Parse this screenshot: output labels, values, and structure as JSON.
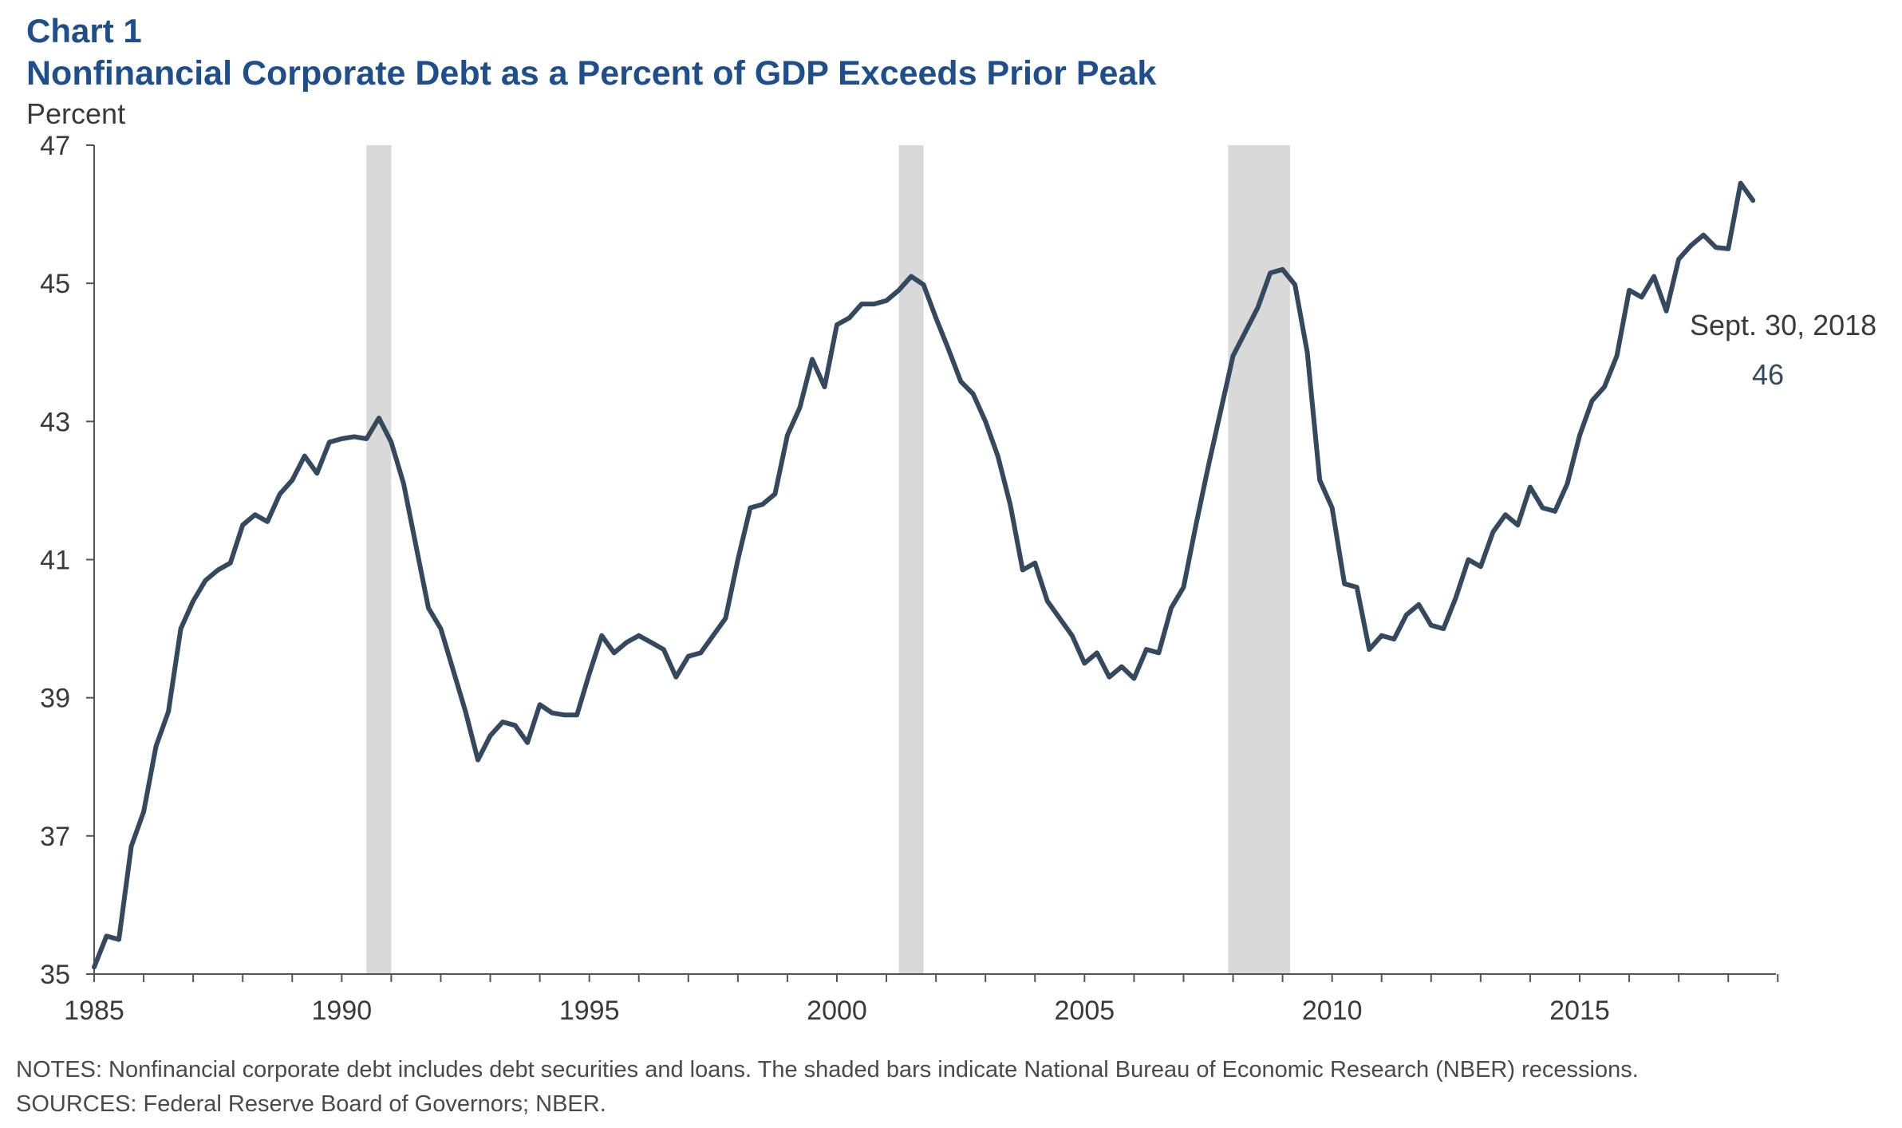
{
  "header": {
    "chart_number": "Chart 1",
    "title": "Nonfinancial Corporate Debt as a Percent of GDP Exceeds Prior Peak",
    "unit_label": "Percent"
  },
  "annotation": {
    "date_label": "Sept. 30, 2018",
    "value_label": "46"
  },
  "footnotes": {
    "notes": "NOTES: Nonfinancial corporate debt includes debt securities and loans. The shaded bars indicate National Bureau of Economic Research (NBER) recessions.",
    "sources": "SOURCES: Federal Reserve Board of Governors; NBER."
  },
  "colors": {
    "title": "#1f4e8c",
    "line": "#34495e",
    "recession": "#d9d9d9"
  },
  "chart_data": {
    "type": "line",
    "title": "Nonfinancial Corporate Debt as a Percent of GDP Exceeds Prior Peak",
    "xlabel": "",
    "ylabel": "Percent",
    "xlim": [
      1985,
      2019
    ],
    "ylim": [
      35,
      47
    ],
    "xticks": [
      1985,
      1990,
      1995,
      2000,
      2005,
      2010,
      2015
    ],
    "xtick_labels": [
      "1985",
      "1990",
      "1995",
      "2000",
      "2005",
      "2010",
      "2015"
    ],
    "yticks": [
      35,
      37,
      39,
      41,
      43,
      45,
      47
    ],
    "ytick_labels": [
      "35",
      "37",
      "39",
      "41",
      "43",
      "45",
      "47"
    ],
    "grid": false,
    "recessions": [
      {
        "start": 1990.5,
        "end": 1991.0
      },
      {
        "start": 2001.25,
        "end": 2001.75
      },
      {
        "start": 2007.9,
        "end": 2009.15
      }
    ],
    "series": [
      {
        "name": "Nonfinancial corporate debt as a percent of GDP",
        "x": [
          1985.0,
          1985.25,
          1985.5,
          1985.75,
          1986.0,
          1986.25,
          1986.5,
          1986.75,
          1987.0,
          1987.25,
          1987.5,
          1987.75,
          1988.0,
          1988.25,
          1988.5,
          1988.75,
          1989.0,
          1989.25,
          1989.5,
          1989.75,
          1990.0,
          1990.25,
          1990.5,
          1990.75,
          1991.0,
          1991.25,
          1991.5,
          1991.75,
          1992.0,
          1992.25,
          1992.5,
          1992.75,
          1993.0,
          1993.25,
          1993.5,
          1993.75,
          1994.0,
          1994.25,
          1994.5,
          1994.75,
          1995.0,
          1995.25,
          1995.5,
          1995.75,
          1996.0,
          1996.25,
          1996.5,
          1996.75,
          1997.0,
          1997.25,
          1997.5,
          1997.75,
          1998.0,
          1998.25,
          1998.5,
          1998.75,
          1999.0,
          1999.25,
          1999.5,
          1999.75,
          2000.0,
          2000.25,
          2000.5,
          2000.75,
          2001.0,
          2001.25,
          2001.5,
          2001.75,
          2002.0,
          2002.25,
          2002.5,
          2002.75,
          2003.0,
          2003.25,
          2003.5,
          2003.75,
          2004.0,
          2004.25,
          2004.5,
          2004.75,
          2005.0,
          2005.25,
          2005.5,
          2005.75,
          2006.0,
          2006.25,
          2006.5,
          2006.75,
          2007.0,
          2007.25,
          2007.5,
          2007.75,
          2008.0,
          2008.25,
          2008.5,
          2008.75,
          2009.0,
          2009.25,
          2009.5,
          2009.75,
          2010.0,
          2010.25,
          2010.5,
          2010.75,
          2011.0,
          2011.25,
          2011.5,
          2011.75,
          2012.0,
          2012.25,
          2012.5,
          2012.75,
          2013.0,
          2013.25,
          2013.5,
          2013.75,
          2014.0,
          2014.25,
          2014.5,
          2014.75,
          2015.0,
          2015.25,
          2015.5,
          2015.75,
          2016.0,
          2016.25,
          2016.5,
          2016.75,
          2017.0,
          2017.25,
          2017.5,
          2017.75,
          2018.0,
          2018.25,
          2018.5
        ],
        "values": [
          35.1,
          35.55,
          35.5,
          36.85,
          37.35,
          38.3,
          38.8,
          40.0,
          40.4,
          40.7,
          40.85,
          40.95,
          41.5,
          41.65,
          41.55,
          41.95,
          42.15,
          42.5,
          42.25,
          42.7,
          42.75,
          42.78,
          42.75,
          43.05,
          42.7,
          42.1,
          41.2,
          40.3,
          40.0,
          39.4,
          38.8,
          38.1,
          38.45,
          38.65,
          38.6,
          38.35,
          38.9,
          38.78,
          38.75,
          38.75,
          39.35,
          39.9,
          39.65,
          39.8,
          39.9,
          39.8,
          39.7,
          39.3,
          39.6,
          39.65,
          39.9,
          40.15,
          41.0,
          41.75,
          41.8,
          41.95,
          42.8,
          43.2,
          43.9,
          43.5,
          44.4,
          44.5,
          44.7,
          44.7,
          44.75,
          44.9,
          45.1,
          44.98,
          44.5,
          44.05,
          43.58,
          43.4,
          43.0,
          42.5,
          41.8,
          40.85,
          40.95,
          40.4,
          40.15,
          39.9,
          39.5,
          39.65,
          39.3,
          39.45,
          39.28,
          39.7,
          39.65,
          40.3,
          40.6,
          41.5,
          42.35,
          43.15,
          43.95,
          44.3,
          44.65,
          45.15,
          45.2,
          44.98,
          44.0,
          42.15,
          41.75,
          40.65,
          40.6,
          39.7,
          39.9,
          39.85,
          40.2,
          40.35,
          40.05,
          40.0,
          40.45,
          41.0,
          40.9,
          41.4,
          41.65,
          41.5,
          42.05,
          41.75,
          41.7,
          42.1,
          42.8,
          43.3,
          43.5,
          43.95,
          44.9,
          44.8,
          45.1,
          44.6,
          45.35,
          45.55,
          45.7,
          45.52,
          45.5,
          46.45,
          46.2
        ]
      }
    ]
  }
}
